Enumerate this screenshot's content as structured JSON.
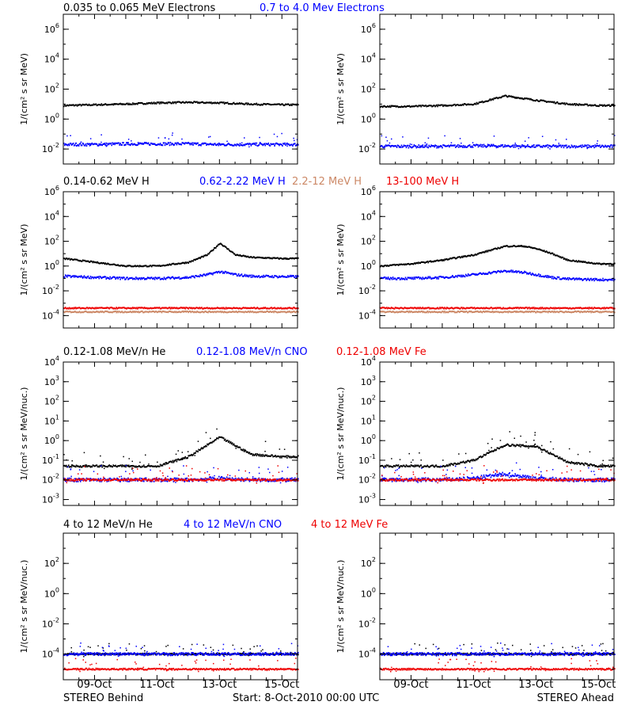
{
  "footer": {
    "left": "STEREO Behind",
    "center": "Start:  8-Oct-2010 00:00 UTC",
    "right": "STEREO Ahead"
  },
  "x_ticks": [
    "09-Oct",
    "11-Oct",
    "13-Oct",
    "15-Oct"
  ],
  "chart_data": [
    {
      "type": "scatter",
      "name": "electrons",
      "yscale": "log",
      "ylim": [
        0.001,
        10000000
      ],
      "yticks": [
        {
          "value": 0.01,
          "base": "10",
          "exp": "-2"
        },
        {
          "value": 1,
          "base": "10",
          "exp": "0"
        },
        {
          "value": 100,
          "base": "10",
          "exp": "2"
        },
        {
          "value": 10000,
          "base": "10",
          "exp": "4"
        },
        {
          "value": 1000000,
          "base": "10",
          "exp": "6"
        }
      ],
      "ylabel": "1/(cm² s sr MeV)",
      "legend": [
        {
          "label": "0.035 to 0.065 MeV Electrons",
          "color": "#000000"
        },
        {
          "label": "0.7 to 4.0 Mev Electrons",
          "color": "#0000ff"
        }
      ],
      "x_days": [
        0,
        1,
        2,
        3,
        4,
        5,
        6,
        7
      ],
      "behind": [
        {
          "name": "0.035 to 0.065 MeV Electrons",
          "color": "#000000",
          "y": [
            8,
            9,
            10,
            12,
            13,
            12,
            10,
            9
          ]
        },
        {
          "name": "0.7 to 4.0 Mev Electrons",
          "color": "#0000ff",
          "y": [
            0.02,
            0.02,
            0.022,
            0.022,
            0.022,
            0.02,
            0.02,
            0.02
          ]
        }
      ],
      "ahead": [
        {
          "name": "0.035 to 0.065 MeV Electrons",
          "color": "#000000",
          "y": [
            7,
            7,
            8,
            10,
            35,
            18,
            10,
            8
          ]
        },
        {
          "name": "0.7 to 4.0 Mev Electrons",
          "color": "#0000ff",
          "y": [
            0.015,
            0.015,
            0.015,
            0.016,
            0.016,
            0.015,
            0.015,
            0.015
          ]
        }
      ]
    },
    {
      "type": "scatter",
      "name": "protons",
      "yscale": "log",
      "ylim": [
        1e-05,
        1000000
      ],
      "yticks": [
        {
          "value": 0.0001,
          "base": "10",
          "exp": "-4"
        },
        {
          "value": 0.01,
          "base": "10",
          "exp": "-2"
        },
        {
          "value": 1,
          "base": "10",
          "exp": "0"
        },
        {
          "value": 100,
          "base": "10",
          "exp": "2"
        },
        {
          "value": 10000,
          "base": "10",
          "exp": "4"
        },
        {
          "value": 1000000,
          "base": "10",
          "exp": "6"
        }
      ],
      "ylabel": "1/(cm² s sr MeV)",
      "legend": [
        {
          "label": "0.14-0.62 MeV H",
          "color": "#000000"
        },
        {
          "label": "0.62-2.22 MeV H",
          "color": "#0000ff"
        },
        {
          "label": "2.2-12 MeV H",
          "color": "#cc8866"
        },
        {
          "label": "13-100 MeV H",
          "color": "#ee0000"
        }
      ],
      "x_days": [
        0,
        1,
        2,
        3,
        4,
        4.6,
        5,
        5.5,
        6,
        7
      ],
      "behind": [
        {
          "name": "0.14-0.62 MeV H",
          "color": "#000000",
          "y": [
            4,
            2,
            1,
            1,
            2,
            8,
            70,
            8,
            5,
            4
          ]
        },
        {
          "name": "0.62-2.22 MeV H",
          "color": "#0000ff",
          "y": [
            0.15,
            0.12,
            0.1,
            0.1,
            0.12,
            0.2,
            0.35,
            0.2,
            0.15,
            0.14
          ]
        },
        {
          "name": "2.2-12 MeV H",
          "color": "#cc8866",
          "y": [
            0.0002,
            0.0002,
            0.0002,
            0.0002,
            0.0002,
            0.0002,
            0.0002,
            0.0002,
            0.0002,
            0.0002
          ]
        },
        {
          "name": "13-100 MeV H",
          "color": "#ee0000",
          "y": [
            0.0004,
            0.0004,
            0.0004,
            0.0004,
            0.0004,
            0.0004,
            0.0004,
            0.0004,
            0.0004,
            0.0004
          ]
        }
      ],
      "ahead": [
        {
          "name": "0.14-0.62 MeV H",
          "color": "#000000",
          "y": [
            1,
            1.5,
            3,
            8,
            40,
            40,
            25,
            10,
            3,
            1.5
          ]
        },
        {
          "name": "0.62-2.22 MeV H",
          "color": "#0000ff",
          "y": [
            0.1,
            0.1,
            0.12,
            0.2,
            0.4,
            0.3,
            0.2,
            0.12,
            0.09,
            0.08
          ]
        },
        {
          "name": "2.2-12 MeV H",
          "color": "#cc8866",
          "y": [
            0.0002,
            0.0002,
            0.0002,
            0.0002,
            0.0002,
            0.0002,
            0.0002,
            0.0002,
            0.0002,
            0.0002
          ]
        },
        {
          "name": "13-100 MeV H",
          "color": "#ee0000",
          "y": [
            0.0004,
            0.0004,
            0.0004,
            0.0004,
            0.0004,
            0.0004,
            0.0004,
            0.0004,
            0.0004,
            0.0004
          ]
        }
      ]
    },
    {
      "type": "scatter",
      "name": "low-energy-ions",
      "yscale": "log",
      "ylim": [
        0.0005,
        10000
      ],
      "yticks": [
        {
          "value": 0.001,
          "base": "10",
          "exp": "-3"
        },
        {
          "value": 0.01,
          "base": "10",
          "exp": "-2"
        },
        {
          "value": 0.1,
          "base": "10",
          "exp": "-1"
        },
        {
          "value": 1,
          "base": "10",
          "exp": "0"
        },
        {
          "value": 10,
          "base": "10",
          "exp": "1"
        },
        {
          "value": 100,
          "base": "10",
          "exp": "2"
        },
        {
          "value": 1000,
          "base": "10",
          "exp": "3"
        },
        {
          "value": 10000,
          "base": "10",
          "exp": "4"
        }
      ],
      "ylabel": "1/(cm² s sr MeV/nuc.)",
      "legend": [
        {
          "label": "0.12-1.08 MeV/n He",
          "color": "#000000"
        },
        {
          "label": "0.12-1.08 MeV/n CNO",
          "color": "#0000ff"
        },
        {
          "label": "0.12-1.08 MeV Fe",
          "color": "#ee0000"
        }
      ],
      "x_days": [
        0,
        1,
        2,
        3,
        4,
        5,
        6,
        7
      ],
      "behind": [
        {
          "name": "0.12-1.08 MeV/n He",
          "color": "#000000",
          "y": [
            0.05,
            0.05,
            0.05,
            0.05,
            0.15,
            1.5,
            0.2,
            0.15
          ]
        },
        {
          "name": "0.12-1.08 MeV/n CNO",
          "color": "#0000ff",
          "y": [
            0.01,
            0.01,
            0.01,
            0.01,
            0.01,
            0.012,
            0.01,
            0.01
          ]
        },
        {
          "name": "0.12-1.08 MeV Fe",
          "color": "#ee0000",
          "y": [
            0.01,
            0.01,
            0.01,
            0.01,
            0.01,
            0.01,
            0.01,
            0.01
          ]
        }
      ],
      "ahead": [
        {
          "name": "0.12-1.08 MeV/n He",
          "color": "#000000",
          "y": [
            0.05,
            0.05,
            0.05,
            0.1,
            0.6,
            0.5,
            0.08,
            0.05
          ]
        },
        {
          "name": "0.12-1.08 MeV/n CNO",
          "color": "#0000ff",
          "y": [
            0.01,
            0.01,
            0.01,
            0.012,
            0.02,
            0.012,
            0.01,
            0.01
          ]
        },
        {
          "name": "0.12-1.08 MeV Fe",
          "color": "#ee0000",
          "y": [
            0.01,
            0.01,
            0.01,
            0.01,
            0.01,
            0.01,
            0.01,
            0.01
          ]
        }
      ]
    },
    {
      "type": "scatter",
      "name": "high-energy-ions",
      "yscale": "log",
      "ylim": [
        2e-06,
        10000
      ],
      "yticks": [
        {
          "value": 0.0001,
          "base": "10",
          "exp": "-4"
        },
        {
          "value": 0.01,
          "base": "10",
          "exp": "-2"
        },
        {
          "value": 1,
          "base": "10",
          "exp": "0"
        },
        {
          "value": 100,
          "base": "10",
          "exp": "2"
        }
      ],
      "ylabel": "1/(cm² s sr MeV/nuc.)",
      "legend": [
        {
          "label": "4 to 12 MeV/n He",
          "color": "#000000"
        },
        {
          "label": "4 to 12 MeV/n CNO",
          "color": "#0000ff"
        },
        {
          "label": "4 to 12 MeV Fe",
          "color": "#ee0000"
        }
      ],
      "x_days": [
        0,
        1,
        2,
        3,
        4,
        5,
        6,
        7
      ],
      "behind": [
        {
          "name": "4 to 12 MeV/n He",
          "color": "#000000",
          "y": [
            0.0001,
            0.0001,
            0.0001,
            0.0001,
            0.0001,
            0.0001,
            0.0001,
            0.0001
          ]
        },
        {
          "name": "4 to 12 MeV/n CNO",
          "color": "#0000ff",
          "y": [
            0.0001,
            0.0001,
            0.0001,
            0.0001,
            0.0001,
            0.0001,
            0.0001,
            0.0001
          ]
        },
        {
          "name": "4 to 12 MeV Fe",
          "color": "#ee0000",
          "y": [
            1e-05,
            1e-05,
            1e-05,
            1e-05,
            1e-05,
            1e-05,
            1e-05,
            1e-05
          ]
        }
      ],
      "ahead": [
        {
          "name": "4 to 12 MeV/n He",
          "color": "#000000",
          "y": [
            0.0001,
            0.0001,
            0.0001,
            0.0001,
            0.0001,
            0.0001,
            0.0001,
            0.0001
          ]
        },
        {
          "name": "4 to 12 MeV/n CNO",
          "color": "#0000ff",
          "y": [
            0.0001,
            0.0001,
            0.0001,
            0.0001,
            0.0001,
            0.0001,
            0.0001,
            0.0001
          ]
        },
        {
          "name": "4 to 12 MeV Fe",
          "color": "#ee0000",
          "y": [
            1e-05,
            1e-05,
            1e-05,
            1e-05,
            1e-05,
            1e-05,
            1e-05,
            1e-05
          ]
        }
      ]
    }
  ]
}
